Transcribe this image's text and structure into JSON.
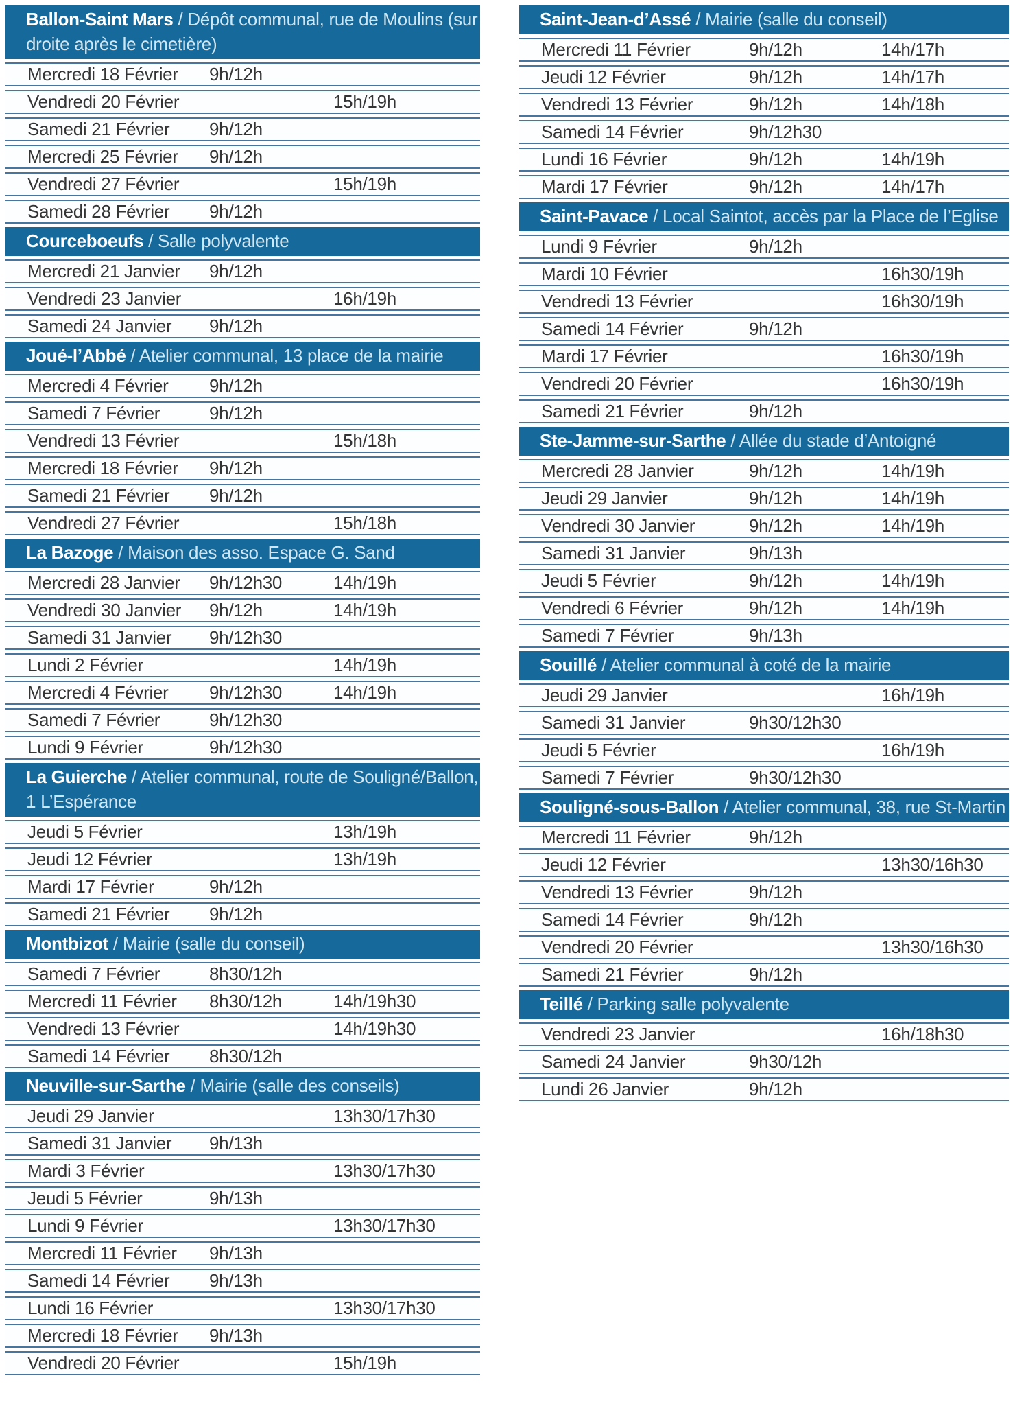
{
  "header_separator": " / ",
  "colors": {
    "header_bg": "#16699b",
    "header_name": "#ffffff",
    "header_location": "#cfe7f3",
    "row_line": "#46769f",
    "row_text": "#343434",
    "background": "#ffffff"
  },
  "columns": [
    {
      "sections": [
        {
          "name": "Ballon-Saint Mars",
          "location": "Dépôt communal, rue de Moulins (sur droite après le cimetière)",
          "rows": [
            {
              "day": "Mercredi 18 Février",
              "t1": "9h/12h"
            },
            {
              "day": "Vendredi 20 Février",
              "t2": "15h/19h"
            },
            {
              "day": "Samedi 21 Février",
              "t1": "9h/12h"
            },
            {
              "day": "Mercredi 25 Février",
              "t1": "9h/12h"
            },
            {
              "day": "Vendredi 27 Février",
              "t2": "15h/19h"
            },
            {
              "day": "Samedi 28 Février",
              "t1": "9h/12h"
            }
          ]
        },
        {
          "name": "Courceboeufs",
          "location": "Salle polyvalente",
          "rows": [
            {
              "day": "Mercredi 21 Janvier",
              "t1": "9h/12h"
            },
            {
              "day": "Vendredi 23 Janvier",
              "t2": "16h/19h"
            },
            {
              "day": "Samedi 24 Janvier",
              "t1": "9h/12h"
            }
          ]
        },
        {
          "name": "Joué-l’Abbé",
          "location": "Atelier communal, 13 place de la mairie",
          "rows": [
            {
              "day": "Mercredi 4 Février",
              "t1": "9h/12h"
            },
            {
              "day": "Samedi 7 Février",
              "t1": "9h/12h"
            },
            {
              "day": "Vendredi 13 Février",
              "t2": "15h/18h"
            },
            {
              "day": "Mercredi 18 Février",
              "t1": "9h/12h"
            },
            {
              "day": "Samedi 21 Février",
              "t1": "9h/12h"
            },
            {
              "day": "Vendredi 27 Février",
              "t2": "15h/18h"
            }
          ]
        },
        {
          "name": "La Bazoge",
          "location": "Maison des asso. Espace G. Sand",
          "rows": [
            {
              "day": "Mercredi 28 Janvier",
              "t1": "9h/12h30",
              "t2": "14h/19h"
            },
            {
              "day": "Vendredi 30 Janvier",
              "t1": "9h/12h",
              "t2": "14h/19h"
            },
            {
              "day": "Samedi 31 Janvier",
              "t1": "9h/12h30"
            },
            {
              "day": "Lundi 2 Février",
              "t2": "14h/19h"
            },
            {
              "day": "Mercredi 4 Février",
              "t1": "9h/12h30",
              "t2": "14h/19h"
            },
            {
              "day": "Samedi 7 Février",
              "t1": "9h/12h30"
            },
            {
              "day": "Lundi 9 Février",
              "t1": "9h/12h30"
            }
          ]
        },
        {
          "name": "La Guierche",
          "location": "Atelier communal, route de Souligné/Ballon, 1 L’Espérance",
          "rows": [
            {
              "day": "Jeudi 5 Février",
              "t2": "13h/19h"
            },
            {
              "day": "Jeudi 12 Février",
              "t2": "13h/19h"
            },
            {
              "day": "Mardi 17 Février",
              "t1": "9h/12h"
            },
            {
              "day": "Samedi 21 Février",
              "t1": "9h/12h"
            }
          ]
        },
        {
          "name": "Montbizot",
          "location": "Mairie (salle du conseil)",
          "rows": [
            {
              "day": "Samedi 7 Février",
              "t1": "8h30/12h"
            },
            {
              "day": "Mercredi 11 Février",
              "t1": "8h30/12h",
              "t2": "14h/19h30"
            },
            {
              "day": "Vendredi 13 Février",
              "t2": "14h/19h30"
            },
            {
              "day": "Samedi 14 Février",
              "t1": "8h30/12h"
            }
          ]
        },
        {
          "name": "Neuville-sur-Sarthe",
          "location": "Mairie (salle des conseils)",
          "rows": [
            {
              "day": "Jeudi 29 Janvier",
              "t2": "13h30/17h30"
            },
            {
              "day": "Samedi 31 Janvier",
              "t1": "9h/13h"
            },
            {
              "day": "Mardi 3 Février",
              "t2": "13h30/17h30"
            },
            {
              "day": "Jeudi 5 Février",
              "t1": "9h/13h"
            },
            {
              "day": "Lundi 9 Février",
              "t2": "13h30/17h30"
            },
            {
              "day": "Mercredi 11 Février",
              "t1": "9h/13h"
            },
            {
              "day": "Samedi 14 Février",
              "t1": "9h/13h"
            },
            {
              "day": "Lundi 16 Février",
              "t2": "13h30/17h30"
            },
            {
              "day": "Mercredi 18 Février",
              "t1": "9h/13h"
            },
            {
              "day": "Vendredi 20 Février",
              "t2": "15h/19h"
            }
          ]
        }
      ]
    },
    {
      "sections": [
        {
          "name": "Saint-Jean-d’Assé",
          "location": "Mairie (salle du conseil)",
          "rows": [
            {
              "day": "Mercredi 11 Février",
              "t1": "9h/12h",
              "t2": "14h/17h"
            },
            {
              "day": "Jeudi 12 Février",
              "t1": "9h/12h",
              "t2": "14h/17h"
            },
            {
              "day": "Vendredi 13 Février",
              "t1": "9h/12h",
              "t2": "14h/18h"
            },
            {
              "day": "Samedi 14 Février",
              "t1": "9h/12h30"
            },
            {
              "day": "Lundi 16 Février",
              "t1": "9h/12h",
              "t2": "14h/19h"
            },
            {
              "day": "Mardi 17 Février",
              "t1": "9h/12h",
              "t2": "14h/17h"
            }
          ]
        },
        {
          "name": "Saint-Pavace",
          "location": "Local Saintot, accès par la Place de l’Eglise",
          "rows": [
            {
              "day": "Lundi 9 Février",
              "t1": "9h/12h"
            },
            {
              "day": "Mardi 10 Février",
              "t2": "16h30/19h"
            },
            {
              "day": "Vendredi 13 Février",
              "t2": "16h30/19h"
            },
            {
              "day": "Samedi 14 Février",
              "t1": "9h/12h"
            },
            {
              "day": "Mardi 17 Février",
              "t2": "16h30/19h"
            },
            {
              "day": "Vendredi 20 Février",
              "t2": "16h30/19h"
            },
            {
              "day": "Samedi 21 Février",
              "t1": "9h/12h"
            }
          ]
        },
        {
          "name": "Ste-Jamme-sur-Sarthe",
          "location": "Allée du stade d’Antoigné",
          "rows": [
            {
              "day": "Mercredi 28 Janvier",
              "t1": "9h/12h",
              "t2": "14h/19h"
            },
            {
              "day": "Jeudi 29 Janvier",
              "t1": "9h/12h",
              "t2": "14h/19h"
            },
            {
              "day": "Vendredi 30 Janvier",
              "t1": "9h/12h",
              "t2": "14h/19h"
            },
            {
              "day": "Samedi 31 Janvier",
              "t1": "9h/13h"
            },
            {
              "day": "Jeudi 5 Février",
              "t1": "9h/12h",
              "t2": "14h/19h"
            },
            {
              "day": "Vendredi 6 Février",
              "t1": "9h/12h",
              "t2": "14h/19h"
            },
            {
              "day": "Samedi 7 Février",
              "t1": "9h/13h"
            }
          ]
        },
        {
          "name": "Souillé",
          "location": "Atelier communal à coté de la mairie",
          "rows": [
            {
              "day": "Jeudi 29 Janvier",
              "t2": "16h/19h"
            },
            {
              "day": "Samedi 31 Janvier",
              "t1": "9h30/12h30"
            },
            {
              "day": "Jeudi 5 Février",
              "t2": "16h/19h"
            },
            {
              "day": "Samedi 7 Février",
              "t1": "9h30/12h30"
            }
          ]
        },
        {
          "name": "Souligné-sous-Ballon",
          "location": "Atelier communal, 38, rue St-Martin",
          "rows": [
            {
              "day": "Mercredi 11 Février",
              "t1": "9h/12h"
            },
            {
              "day": "Jeudi 12 Février",
              "t2": "13h30/16h30"
            },
            {
              "day": "Vendredi 13 Février",
              "t1": "9h/12h"
            },
            {
              "day": "Samedi 14 Février",
              "t1": "9h/12h"
            },
            {
              "day": "Vendredi 20 Février",
              "t2": "13h30/16h30"
            },
            {
              "day": "Samedi 21 Février",
              "t1": "9h/12h"
            }
          ]
        },
        {
          "name": "Teillé",
          "location": "Parking salle polyvalente",
          "rows": [
            {
              "day": "Vendredi 23 Janvier",
              "t2": "16h/18h30"
            },
            {
              "day": "Samedi 24 Janvier",
              "t1": "9h30/12h"
            },
            {
              "day": "Lundi 26 Janvier",
              "t1": "9h/12h"
            }
          ]
        }
      ]
    }
  ]
}
